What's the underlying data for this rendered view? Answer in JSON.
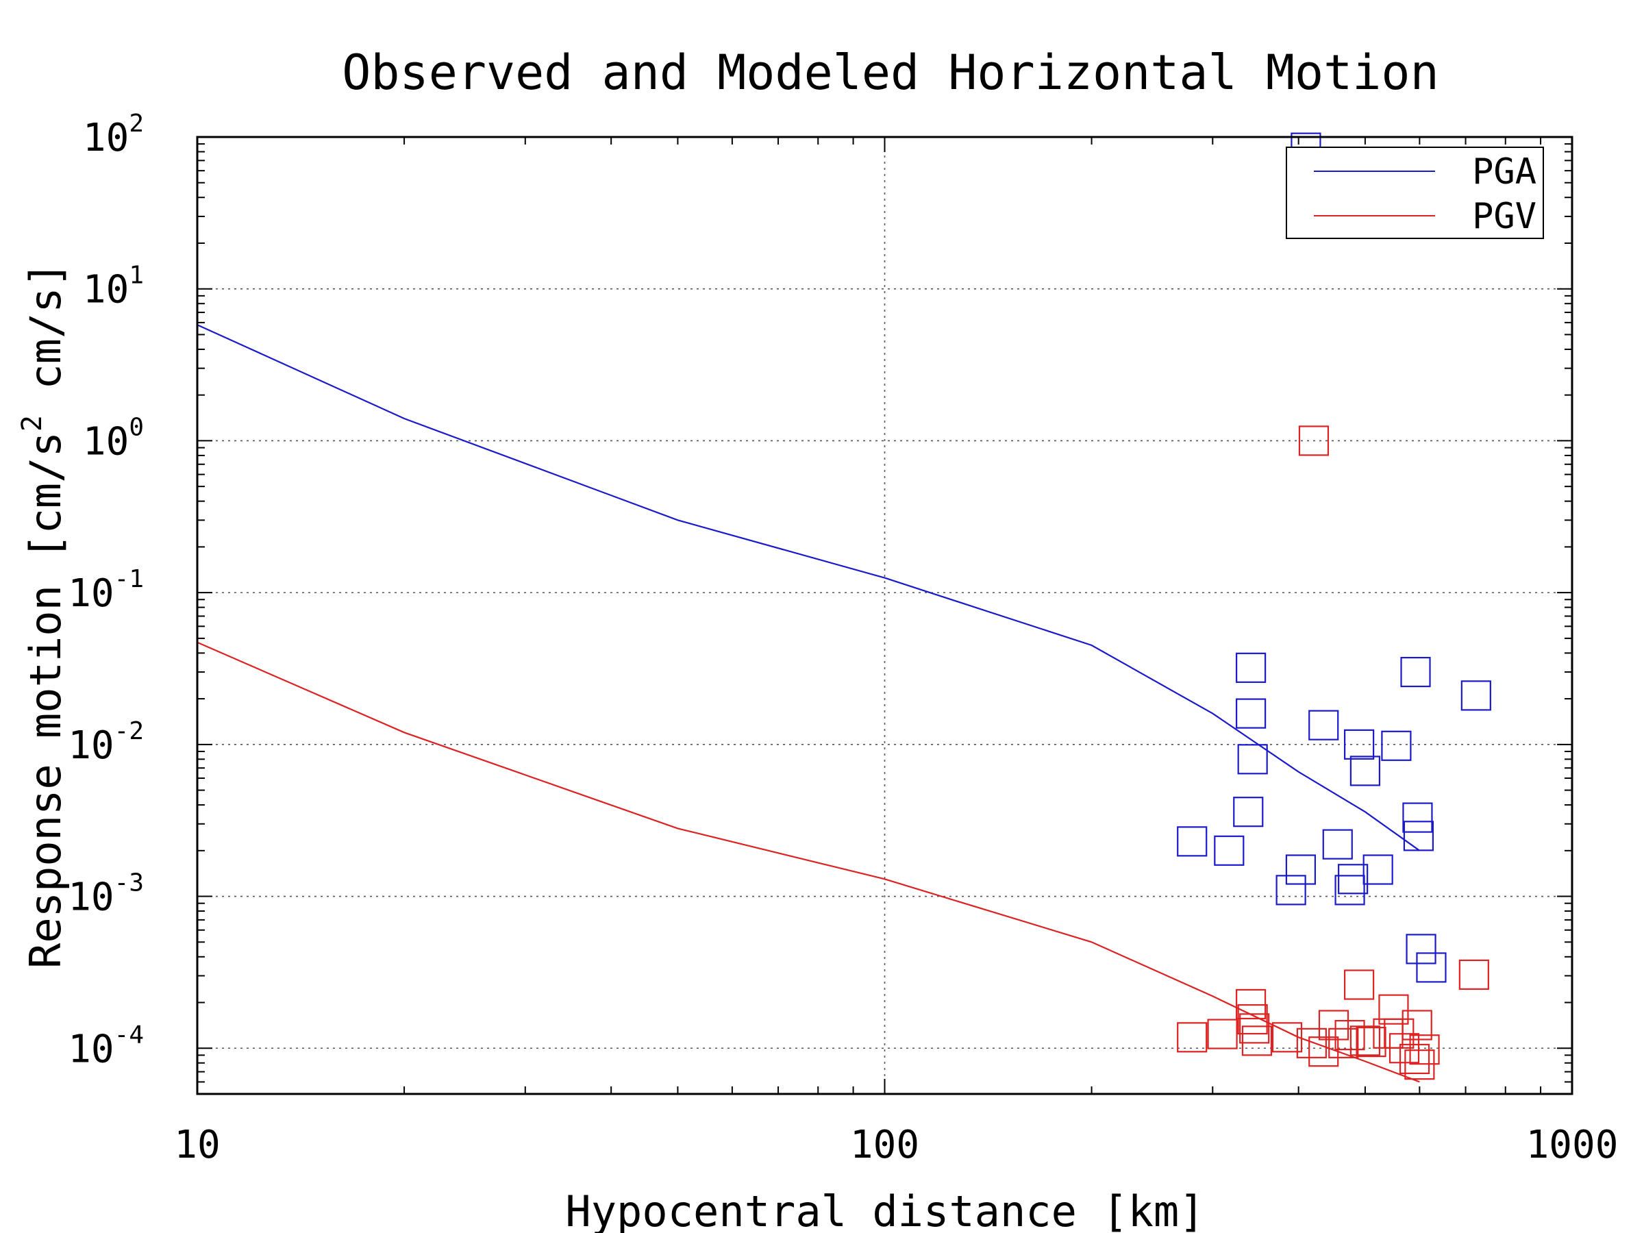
{
  "chart_data": {
    "type": "scatter",
    "title": "Observed and Modeled Horizontal Motion",
    "xlabel": "Hypocentral distance [km]",
    "ylabel_main": "Response motion [cm/s",
    "ylabel_sup": "2",
    "ylabel_tail": "  cm/s]",
    "x_scale": "log",
    "y_scale": "log",
    "xlim": [
      10,
      1000
    ],
    "ylim": [
      5e-05,
      100
    ],
    "x_ticks": [
      {
        "value": 10,
        "label": "10"
      },
      {
        "value": 100,
        "label": "100"
      },
      {
        "value": 1000,
        "label": "1000"
      }
    ],
    "y_ticks": [
      {
        "value": 100,
        "base": "10",
        "exp": "2"
      },
      {
        "value": 10,
        "base": "10",
        "exp": "1"
      },
      {
        "value": 1,
        "base": "10",
        "exp": "0"
      },
      {
        "value": 0.1,
        "base": "10",
        "exp": "-1"
      },
      {
        "value": 0.01,
        "base": "10",
        "exp": "-2"
      },
      {
        "value": 0.001,
        "base": "10",
        "exp": "-3"
      },
      {
        "value": 0.0001,
        "base": "10",
        "exp": "-4"
      }
    ],
    "grid": true,
    "legend_position": "top-right",
    "colors": {
      "PGA": "#1a1acc",
      "PGV": "#dd2222",
      "grid": "#555555"
    },
    "series": [
      {
        "name": "PGA",
        "kind": "line",
        "color": "#1a1acc",
        "x": [
          10,
          20,
          50,
          100,
          200,
          300,
          400,
          500,
          600
        ],
        "y": [
          5.8,
          1.4,
          0.3,
          0.125,
          0.045,
          0.016,
          0.0066,
          0.0036,
          0.002
        ]
      },
      {
        "name": "PGV",
        "kind": "line",
        "color": "#dd2222",
        "x": [
          10,
          20,
          50,
          100,
          200,
          300,
          400,
          500,
          600
        ],
        "y": [
          0.047,
          0.012,
          0.0028,
          0.0013,
          0.0005,
          0.00022,
          0.000118,
          8.2e-05,
          6e-05
        ]
      },
      {
        "name": "PGA observed",
        "kind": "marker",
        "color": "#1a1acc",
        "x": [
          410,
          341,
          341,
          343,
          338,
          280,
          317,
          435,
          403,
          390,
          456,
          480,
          475,
          500,
          490,
          555,
          596,
          598,
          592,
          522,
          603,
          624,
          725
        ],
        "y": [
          85,
          0.032,
          0.016,
          0.008,
          0.0036,
          0.0023,
          0.002,
          0.0134,
          0.0015,
          0.0011,
          0.0022,
          0.0013,
          0.0011,
          0.0067,
          0.01,
          0.0098,
          0.0033,
          0.0025,
          0.03,
          0.0015,
          0.00045,
          0.00034,
          0.021
        ]
      },
      {
        "name": "PGV observed",
        "kind": "marker",
        "color": "#dd2222",
        "x": [
          421,
          280,
          310,
          341,
          343,
          345,
          348,
          385,
          418,
          435,
          450,
          465,
          475,
          490,
          500,
          510,
          540,
          550,
          560,
          570,
          590,
          595,
          600,
          610,
          720
        ],
        "y": [
          1.0,
          0.000118,
          0.000124,
          0.000195,
          0.000155,
          0.000135,
          0.000112,
          0.000118,
          0.000108,
          9.5e-05,
          0.000142,
          0.000108,
          0.000122,
          0.000262,
          0.000112,
          0.00011,
          0.000125,
          0.00018,
          0.000125,
          0.0001,
          8.5e-05,
          0.000142,
          7.8e-05,
          9.8e-05,
          0.000305
        ]
      }
    ]
  }
}
